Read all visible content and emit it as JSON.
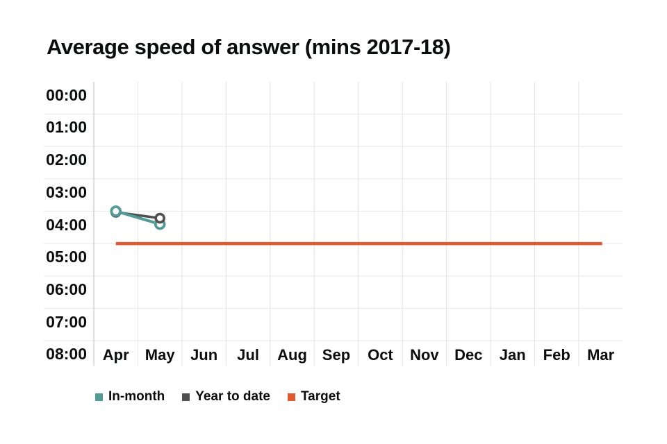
{
  "title": "Average speed of answer (mins 2017-18)",
  "chart_data": {
    "type": "line",
    "title": "Average speed of answer (mins 2017-18)",
    "x_axis": {
      "categories": [
        "Apr",
        "May",
        "Jun",
        "Jul",
        "Aug",
        "Sep",
        "Oct",
        "Nov",
        "Dec",
        "Jan",
        "Feb",
        "Mar"
      ]
    },
    "y_axis": {
      "ticks": [
        "00:00",
        "01:00",
        "02:00",
        "03:00",
        "04:00",
        "05:00",
        "06:00",
        "07:00",
        "08:00"
      ],
      "unit": "minutes:seconds",
      "inverted": true,
      "range_minutes": [
        0,
        8
      ]
    },
    "grid": true,
    "legend_position": "bottom",
    "series": [
      {
        "name": "In-month",
        "type": "line",
        "color": "#529a95",
        "marker": "open-circle",
        "values": [
          "03:00",
          "03:24",
          null,
          null,
          null,
          null,
          null,
          null,
          null,
          null,
          null,
          null
        ]
      },
      {
        "name": "Year to date",
        "type": "line",
        "color": "#4f4f4f",
        "marker": "open-circle",
        "values": [
          "03:02",
          "03:13",
          null,
          null,
          null,
          null,
          null,
          null,
          null,
          null,
          null,
          null
        ]
      },
      {
        "name": "Target",
        "type": "reference-line",
        "color": "#e0592f",
        "value": "04:00"
      }
    ],
    "legend": [
      {
        "label": "In-month",
        "color": "#529a95"
      },
      {
        "label": "Year to date",
        "color": "#4f4f4f"
      },
      {
        "label": "Target",
        "color": "#e0592f"
      }
    ]
  }
}
